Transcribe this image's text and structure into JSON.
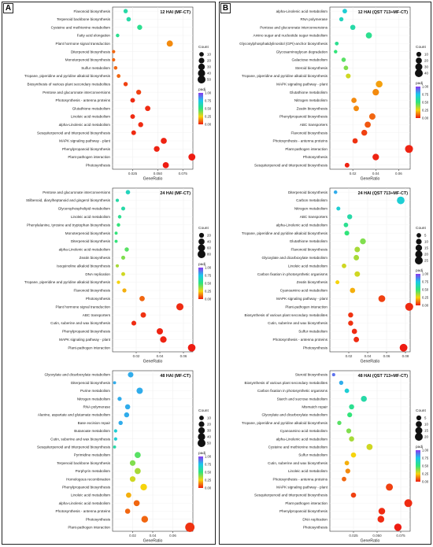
{
  "panels": [
    {
      "letter": "A"
    },
    {
      "letter": "B"
    }
  ],
  "chart_data": [
    {
      "type": "scatter",
      "title": "12 HAI (MF-CT)",
      "xlabel": "GeneRatio",
      "xlim": [
        0.005,
        0.085
      ],
      "xticks": [
        0.025,
        0.05,
        0.075
      ],
      "xtick_labels": [
        "0.025",
        "0.050",
        "0.075"
      ],
      "count_legend": {
        "title": "Count",
        "values": [
          10,
          20,
          30,
          40,
          50
        ]
      },
      "padj_legend": {
        "title": "padj",
        "ticks": [
          "1.00",
          "0.75",
          "0.50",
          "0.25",
          "0.00"
        ]
      },
      "categories": [
        "Flavonoid biosynthesis",
        "Terpenoid backbone biosynthesis",
        "Cysteine and methionine metabolism",
        "Fatty acid elongation",
        "Plant hormone signal transduction",
        "Diterpenoid biosynthesis",
        "Monoterpenoid biosynthesis",
        "Sulfur metabolism",
        "Tropane, piperidine and pyridine alkaloid biosynthesis",
        "Biosynthesis of various plant secondary metabolites",
        "Pentose and glucuronate interconversions",
        "Photosynthesis - antenna proteins",
        "Glutathione metabolism",
        "Linoleic acid metabolism",
        "alpha-Linolenic acid metabolism",
        "Sesquiterpenoid and triterpenoid biosynthesis",
        "MAPK signaling pathway - plant",
        "Phenylpropanoid biosynthesis",
        "Plant-pathogen interaction",
        "Photosynthesis"
      ],
      "gene_ratio": [
        0.018,
        0.021,
        0.032,
        0.01,
        0.062,
        0.006,
        0.006,
        0.008,
        0.011,
        0.018,
        0.031,
        0.025,
        0.04,
        0.025,
        0.033,
        0.026,
        0.056,
        0.049,
        0.084,
        0.058
      ],
      "count": [
        8,
        9,
        14,
        4,
        26,
        3,
        3,
        4,
        5,
        8,
        13,
        11,
        17,
        11,
        14,
        11,
        24,
        21,
        36,
        25
      ],
      "padj": [
        0.6,
        0.6,
        0.55,
        0.55,
        0.15,
        0.1,
        0.1,
        0.1,
        0.1,
        0.05,
        0.05,
        0.02,
        0.02,
        0.02,
        0.02,
        0.02,
        0.01,
        0.01,
        0.0,
        0.0
      ]
    },
    {
      "type": "scatter",
      "title": "24 HAI (MF-CT)",
      "xlabel": "GeneRatio",
      "xlim": [
        0.0,
        0.068
      ],
      "xticks": [
        0.02,
        0.04,
        0.06
      ],
      "xtick_labels": [
        "0.02",
        "0.04",
        "0.06"
      ],
      "count_legend": {
        "title": "Count",
        "values": [
          20,
          40,
          60,
          80
        ]
      },
      "padj_legend": {
        "title": "padj",
        "ticks": [
          "1.00",
          "0.75",
          "0.50",
          "0.25",
          "0.00"
        ]
      },
      "categories": [
        "Pentose and glucuronate interconversions",
        "Stilbenoid, diarylheptanoid and gingerol biosynthesis",
        "Glycerophospholipid metabolism",
        "Linoleic acid metabolism",
        "Phenylalanine, tyrosine and tryptophan biosynthesis",
        "Monoterpenoid biosynthesis",
        "Diterpenoid biosynthesis",
        "alpha-Linolenic acid metabolism",
        "Zeatin biosynthesis",
        "Isoquinoline alkaloid biosynthesis",
        "DNA replication",
        "Tropane, piperidine and pyridine alkaloid biosynthesis",
        "Flavonoid biosynthesis",
        "Photosynthesis",
        "Plant hormone signal transduction",
        "ABC transporters",
        "Cutin, suberine and wax biosynthesis",
        "Phenylpropanoid biosynthesis",
        "MAPK signaling pathway - plant",
        "Plant-pathogen interaction"
      ],
      "gene_ratio": [
        0.013,
        0.004,
        0.009,
        0.006,
        0.005,
        0.003,
        0.003,
        0.012,
        0.009,
        0.004,
        0.009,
        0.005,
        0.01,
        0.025,
        0.057,
        0.026,
        0.018,
        0.04,
        0.043,
        0.067
      ],
      "count": [
        14,
        4,
        10,
        6,
        6,
        3,
        3,
        13,
        10,
        4,
        9,
        5,
        11,
        27,
        62,
        28,
        19,
        44,
        47,
        73
      ],
      "padj": [
        0.65,
        0.6,
        0.6,
        0.55,
        0.5,
        0.5,
        0.5,
        0.45,
        0.4,
        0.35,
        0.3,
        0.25,
        0.2,
        0.1,
        0.02,
        0.03,
        0.02,
        0.01,
        0.01,
        0.0
      ]
    },
    {
      "type": "scatter",
      "title": "48 HAI (MF-CT)",
      "xlabel": "GeneRatio",
      "xlim": [
        0.0,
        0.08
      ],
      "xticks": [
        0.02,
        0.04,
        0.06
      ],
      "xtick_labels": [
        "0.02",
        "0.04",
        "0.06"
      ],
      "count_legend": {
        "title": "Count",
        "values": [
          10,
          20,
          30,
          40,
          50
        ]
      },
      "padj_legend": {
        "title": "padj",
        "ticks": [
          "1.00",
          "0.75",
          "0.50",
          "0.25",
          "0.00"
        ]
      },
      "categories": [
        "Glyoxylate and dicarboxylate metabolism",
        "Diterpenoid biosynthesis",
        "Purine metabolism",
        "Nitrogen metabolism",
        "RNA polymerase",
        "Alanine, aspartate and glutamate metabolism",
        "Base excision repair",
        "Butanoate metabolism",
        "Cutin, suberine and wax biosynthesis",
        "Sesquiterpenoid and triterpenoid biosynthesis",
        "Pyrimidine metabolism",
        "Terpenoid backbone biosynthesis",
        "Porphyrin metabolism",
        "Homologous recombination",
        "Phenylpropanoid biosynthesis",
        "Linoleic acid metabolism",
        "alpha-Linolenic acid metabolism",
        "Photosynthesis - antenna proteins",
        "Photosynthesis",
        "Plant-pathogen interaction"
      ],
      "gene_ratio": [
        0.018,
        0.002,
        0.027,
        0.007,
        0.015,
        0.014,
        0.008,
        0.003,
        0.003,
        0.002,
        0.025,
        0.02,
        0.025,
        0.02,
        0.031,
        0.016,
        0.024,
        0.015,
        0.032,
        0.077
      ],
      "count": [
        18,
        2,
        27,
        7,
        15,
        14,
        8,
        3,
        3,
        2,
        25,
        20,
        25,
        20,
        31,
        16,
        24,
        15,
        32,
        77
      ],
      "padj": [
        0.8,
        0.8,
        0.8,
        0.8,
        0.8,
        0.8,
        0.8,
        0.7,
        0.7,
        0.6,
        0.45,
        0.4,
        0.35,
        0.3,
        0.25,
        0.2,
        0.1,
        0.1,
        0.1,
        0.03
      ]
    },
    {
      "type": "scatter",
      "title": "12 HAI (QST 713+MF-CT)",
      "xlabel": "GeneRatio",
      "xlim": [
        0.0,
        0.07
      ],
      "xticks": [
        0.02,
        0.04,
        0.06
      ],
      "xtick_labels": [
        "0.02",
        "0.04",
        "0.06"
      ],
      "count_legend": {
        "title": "Count",
        "values": [
          10,
          20,
          30,
          40
        ]
      },
      "padj_legend": {
        "title": "padj",
        "ticks": [
          "1.00",
          "0.75",
          "0.50",
          "0.25",
          "0.00"
        ]
      },
      "categories": [
        "alpha-Linolenic acid metabolism",
        "RNA polymerase",
        "Pentose and glucuronate interconversions",
        "Amino sugar and nucleotide sugar metabolism",
        "Glycosylphosphatidylinositol (GPI)-anchor biosynthesis",
        "Glycosaminoglycan degradation",
        "Galactose metabolism",
        "Steroid biosynthesis",
        "Tropane, piperidine and pyridine alkaloid biosynthesis",
        "MAPK signaling pathway - plant",
        "Glutathione metabolism",
        "Nitrogen metabolism",
        "Zeatin biosynthesis",
        "Phenylpropanoid biosynthesis",
        "ABC transporters",
        "Flavonoid biosynthesis",
        "Photosynthesis - antenna proteins",
        "Plant-pathogen interaction",
        "Photosynthesis",
        "Sesquiterpenoid and triterpenoid biosynthesis"
      ],
      "gene_ratio": [
        0.013,
        0.01,
        0.02,
        0.034,
        0.006,
        0.005,
        0.012,
        0.014,
        0.016,
        0.043,
        0.04,
        0.021,
        0.023,
        0.037,
        0.033,
        0.03,
        0.022,
        0.069,
        0.04,
        0.015
      ],
      "count": [
        8,
        6,
        12,
        20,
        4,
        3,
        7,
        8,
        10,
        26,
        24,
        13,
        14,
        22,
        20,
        18,
        13,
        41,
        24,
        9
      ],
      "padj": [
        0.7,
        0.65,
        0.6,
        0.55,
        0.55,
        0.5,
        0.45,
        0.4,
        0.3,
        0.18,
        0.15,
        0.15,
        0.15,
        0.1,
        0.08,
        0.05,
        0.03,
        0.01,
        0.01,
        0.01
      ]
    },
    {
      "type": "scatter",
      "title": "24 HAI (QST 713+MF-CT)",
      "xlabel": "GeneRatio",
      "xlim": [
        0.0,
        0.085
      ],
      "xticks": [
        0.02,
        0.04,
        0.06,
        0.08
      ],
      "xtick_labels": [
        "0.02",
        "0.04",
        "0.06",
        "0.08"
      ],
      "count_legend": {
        "title": "Count",
        "values": [
          5,
          10,
          15,
          20,
          25
        ]
      },
      "padj_legend": {
        "title": "padj",
        "ticks": [
          "1.00",
          "0.75",
          "0.50",
          "0.25",
          "0.00"
        ]
      },
      "categories": [
        "Diterpenoid biosynthesis",
        "Carbon metabolism",
        "Nitrogen metabolism",
        "ABC transporters",
        "alpha-Linolenic acid metabolism",
        "Tropane, piperidine and pyridine alkaloid biosynthesis",
        "Glutathione metabolism",
        "Flavonoid biosynthesis",
        "Glyoxylate and dicarboxylate metabolism",
        "Linoleic acid metabolism",
        "Carbon fixation in photosynthetic organisms",
        "Zeatin biosynthesis",
        "Cyanoamino acid metabolism",
        "MAPK signaling pathway - plant",
        "Plant-pathogen interaction",
        "Biosynthesis of various plant secondary metabolites",
        "Cutin, suberine and wax biosynthesis",
        "Sulfur metabolism",
        "Photosynthesis - antenna proteins",
        "Photosynthesis"
      ],
      "gene_ratio": [
        0.006,
        0.075,
        0.009,
        0.021,
        0.017,
        0.018,
        0.035,
        0.029,
        0.028,
        0.015,
        0.029,
        0.008,
        0.024,
        0.055,
        0.084,
        0.022,
        0.022,
        0.026,
        0.028,
        0.078
      ],
      "count": [
        2,
        23,
        3,
        7,
        5,
        6,
        11,
        9,
        9,
        5,
        9,
        3,
        8,
        17,
        26,
        7,
        7,
        8,
        9,
        24
      ],
      "padj": [
        0.8,
        0.7,
        0.7,
        0.6,
        0.55,
        0.5,
        0.4,
        0.35,
        0.35,
        0.3,
        0.3,
        0.25,
        0.2,
        0.05,
        0.02,
        0.03,
        0.03,
        0.02,
        0.02,
        0.0
      ]
    },
    {
      "type": "scatter",
      "title": "48 HAI (QST 713+MF-CT)",
      "xlabel": "GeneRatio",
      "xlim": [
        0.0,
        0.085
      ],
      "xticks": [
        0.025,
        0.05,
        0.075
      ],
      "xtick_labels": [
        "0.025",
        "0.050",
        "0.075"
      ],
      "count_legend": {
        "title": "Count",
        "values": [
          5,
          10,
          15,
          20
        ]
      },
      "padj_legend": {
        "title": "padj",
        "ticks": [
          "1.00",
          "0.75",
          "0.50",
          "0.25",
          "0.00"
        ]
      },
      "categories": [
        "Steroid biosynthesis",
        "Biosynthesis of various plant secondary metabolites",
        "Carbon fixation in photosynthetic organisms",
        "Starch and sucrose metabolism",
        "Mismatch repair",
        "Glyoxylate and dicarboxylate metabolism",
        "Tropane, piperidine and pyridine alkaloid biosynthesis",
        "Cyanoamino acid metabolism",
        "alpha-Linolenic acid metabolism",
        "Cysteine and methionine metabolism",
        "Sulfur metabolism",
        "Cutin, suberine and wax biosynthesis",
        "Linoleic acid metabolism",
        "Photosynthesis - antenna proteins",
        "MAPK signaling pathway - plant",
        "Sesquiterpenoid and triterpenoid biosynthesis",
        "Plant-pathogen interaction",
        "Phenylpropanoid biosynthesis",
        "DNA replication",
        "Photosynthesis"
      ],
      "gene_ratio": [
        0.004,
        0.012,
        0.018,
        0.036,
        0.023,
        0.021,
        0.01,
        0.02,
        0.023,
        0.042,
        0.025,
        0.018,
        0.019,
        0.015,
        0.063,
        0.025,
        0.083,
        0.055,
        0.054,
        0.072
      ],
      "count": [
        1,
        3,
        4,
        9,
        6,
        5,
        3,
        5,
        6,
        10,
        6,
        4,
        5,
        4,
        15,
        6,
        20,
        13,
        13,
        17
      ],
      "padj": [
        0.9,
        0.8,
        0.7,
        0.6,
        0.55,
        0.5,
        0.45,
        0.4,
        0.35,
        0.3,
        0.25,
        0.2,
        0.15,
        0.1,
        0.05,
        0.05,
        0.02,
        0.02,
        0.02,
        0.0
      ]
    }
  ]
}
